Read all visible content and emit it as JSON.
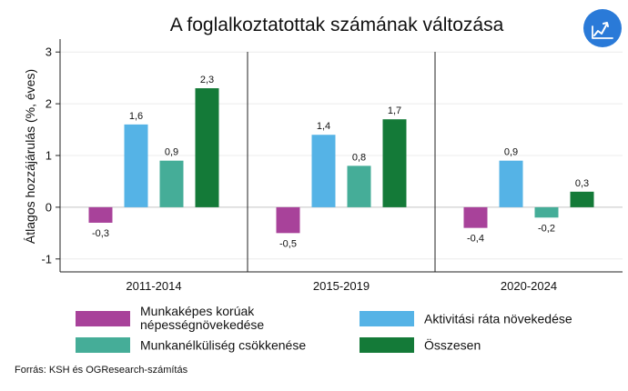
{
  "brand": {
    "icon": "trend-line-icon",
    "color": "#2a7ad8"
  },
  "chart_data": {
    "type": "bar",
    "title": "A foglalkoztatottak számának változása",
    "ylabel": "Átlagos hozzájárulás  (%, éves)",
    "xlabel": "",
    "ylim": [
      -1.25,
      3.25
    ],
    "yticks": [
      -1,
      0,
      1,
      2,
      3
    ],
    "grid": true,
    "legend_position": "bottom",
    "categories": [
      "2011-2014",
      "2015-2019",
      "2020-2024"
    ],
    "series": [
      {
        "name": "Munkaképes korúak népességnövekedése",
        "color": "#a8429a",
        "values": [
          -0.3,
          -0.5,
          -0.4
        ],
        "labels": [
          "-0,3",
          "-0,5",
          "-0,4"
        ]
      },
      {
        "name": "Aktivitási ráta növekedése",
        "color": "#55b3e6",
        "values": [
          1.6,
          1.4,
          0.9
        ],
        "labels": [
          "1,6",
          "1,4",
          "0,9"
        ]
      },
      {
        "name": "Munkanélküliség csökkenése",
        "color": "#45ad98",
        "values": [
          0.9,
          0.8,
          -0.2
        ],
        "labels": [
          "0,9",
          "0,8",
          "-0,2"
        ]
      },
      {
        "name": "Összesen",
        "color": "#147a38",
        "values": [
          2.3,
          1.7,
          0.3
        ],
        "labels": [
          "2,3",
          "1,7",
          "0,3"
        ]
      }
    ],
    "legend_lines": [
      [
        "Munkaképes korúak",
        "népességnövekedése"
      ],
      [
        "Aktivitási ráta növekedése"
      ],
      [
        "Munkanélküliség csökkenése"
      ],
      [
        "Összesen"
      ]
    ]
  },
  "source": "Forrás: KSH és OGResearch-számítás"
}
